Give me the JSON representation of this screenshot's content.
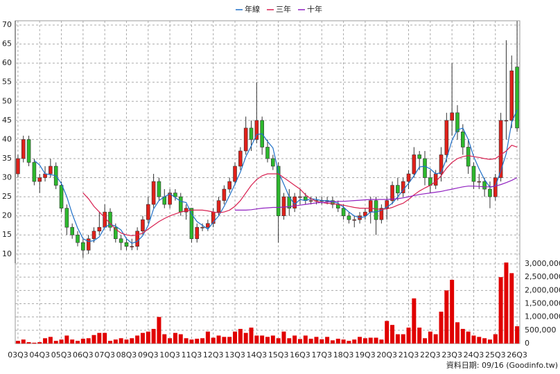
{
  "chart_data": {
    "type": "candlestick",
    "categories": [
      "03Q3",
      null,
      null,
      null,
      "04Q3",
      null,
      null,
      null,
      "05Q3",
      null,
      null,
      null,
      "06Q3",
      null,
      null,
      null,
      "07Q3",
      null,
      null,
      null,
      "08Q3",
      null,
      null,
      null,
      "09Q3",
      null,
      null,
      null,
      "10Q3",
      null,
      null,
      null,
      "11Q3",
      null,
      null,
      null,
      "12Q3",
      null,
      null,
      null,
      "13Q3",
      null,
      null,
      null,
      "14Q3",
      null,
      null,
      null,
      "15Q3",
      null,
      null,
      null,
      "16Q3",
      null,
      null,
      null,
      "17Q3",
      null,
      null,
      null,
      "18Q3",
      null,
      null,
      null,
      "19Q3",
      null,
      null,
      null,
      "20Q3",
      null,
      null,
      null,
      "21Q3",
      null,
      null,
      null,
      "22Q3",
      null,
      null,
      null,
      "23Q3",
      null,
      null,
      null,
      "24Q3",
      null,
      null,
      null,
      "25Q3",
      null,
      null,
      null,
      "26Q3"
    ],
    "open": [
      31,
      35,
      40,
      34,
      29,
      30,
      31,
      33,
      28,
      22,
      17,
      15,
      13,
      11,
      14,
      16,
      17,
      21,
      17,
      14,
      13,
      12,
      12,
      16,
      19,
      23,
      29,
      25,
      23,
      26,
      25,
      21,
      22,
      14,
      17,
      17,
      18,
      21,
      24,
      27,
      29,
      33,
      37,
      43,
      40,
      45,
      38,
      35,
      33,
      20,
      25,
      22,
      25,
      25,
      24,
      24,
      24,
      24,
      24,
      23,
      22,
      20,
      19,
      19,
      20,
      21,
      24,
      19,
      22,
      24,
      28,
      26,
      29,
      31,
      36,
      35,
      30,
      28,
      31,
      36,
      45,
      47,
      42,
      38,
      33,
      29,
      29,
      27,
      25,
      30,
      45,
      45,
      59
    ],
    "high": [
      36,
      41,
      41,
      35,
      31,
      33,
      35,
      34,
      29,
      23,
      18,
      16,
      14,
      15,
      17,
      21,
      23,
      22,
      18,
      15,
      14,
      14,
      17,
      20,
      25,
      31,
      30,
      27,
      27,
      27,
      26,
      23,
      22,
      18,
      18,
      19,
      22,
      25,
      28,
      30,
      34,
      38,
      46,
      45,
      55,
      46,
      40,
      36,
      34,
      26,
      27,
      26,
      27,
      26,
      25,
      25,
      25,
      25,
      25,
      24,
      23,
      21,
      20,
      21,
      22,
      25,
      25,
      23,
      25,
      29,
      30,
      30,
      32,
      38,
      37,
      37,
      32,
      32,
      38,
      47,
      60,
      49,
      44,
      40,
      34,
      31,
      30,
      29,
      31,
      47,
      66,
      62,
      71
    ],
    "low": [
      30,
      34,
      33,
      28,
      26,
      29,
      30,
      27,
      21,
      15,
      14,
      12,
      9,
      10,
      13,
      15,
      17,
      16,
      13,
      11,
      11,
      11,
      11,
      15,
      18,
      22,
      24,
      22,
      22,
      24,
      20,
      19,
      13,
      13,
      16,
      16,
      17,
      20,
      23,
      26,
      28,
      32,
      36,
      37,
      39,
      36,
      34,
      32,
      13,
      19,
      20,
      21,
      23,
      23,
      23,
      23,
      23,
      23,
      22,
      21,
      19,
      18,
      17,
      18,
      19,
      18,
      15,
      18,
      19,
      23,
      24,
      25,
      27,
      30,
      32,
      28,
      26,
      27,
      29,
      34,
      41,
      40,
      36,
      31,
      27,
      27,
      25,
      22,
      24,
      29,
      40,
      43,
      42
    ],
    "close": [
      35,
      40,
      34,
      29,
      30,
      31,
      33,
      28,
      22,
      17,
      15,
      13,
      11,
      14,
      16,
      17,
      21,
      17,
      14,
      13,
      12,
      12,
      16,
      19,
      23,
      29,
      25,
      23,
      26,
      25,
      21,
      22,
      14,
      17,
      17,
      18,
      21,
      24,
      27,
      29,
      33,
      37,
      43,
      40,
      45,
      38,
      35,
      33,
      20,
      25,
      22,
      25,
      25,
      24,
      24,
      24,
      24,
      24,
      23,
      22,
      20,
      19,
      19,
      20,
      21,
      24,
      19,
      22,
      24,
      28,
      26,
      29,
      31,
      36,
      35,
      30,
      28,
      31,
      36,
      45,
      47,
      42,
      38,
      33,
      29,
      29,
      27,
      25,
      30,
      45,
      45,
      58,
      43
    ],
    "up_color": "#e0201a",
    "down_color": "#2db82d",
    "ylim": [
      7.6,
      71.1
    ],
    "yticks": [
      10,
      15,
      20,
      25,
      30,
      35,
      40,
      45,
      50,
      55,
      60,
      65,
      70
    ],
    "grid": true,
    "series": [
      {
        "name": "年線",
        "color": "#1e6fc8",
        "values": [
          null,
          null,
          null,
          34.5,
          33.3,
          31,
          30.8,
          30.5,
          28.5,
          25,
          20.5,
          16.8,
          14,
          13.3,
          13.5,
          14.5,
          17,
          17.8,
          17.3,
          16.3,
          14,
          12.8,
          13.3,
          14.8,
          17.5,
          21.8,
          24,
          25,
          25.8,
          24.8,
          23.8,
          23.5,
          20.5,
          18.5,
          17.5,
          16.5,
          18.3,
          20,
          22.5,
          25.3,
          28.3,
          31.5,
          35.5,
          38.3,
          41.3,
          41.5,
          39.5,
          37.8,
          31.5,
          28.3,
          25,
          23,
          24.3,
          24,
          24.5,
          24.3,
          24,
          24,
          23.8,
          23.3,
          22.3,
          21,
          20,
          19.5,
          19.8,
          21,
          21,
          21.5,
          22.3,
          23.3,
          25,
          26.8,
          28.5,
          30.5,
          32.8,
          33,
          32.3,
          31,
          31.3,
          35,
          39.8,
          42.5,
          43,
          40,
          35.5,
          32.3,
          29.5,
          27.5,
          27.8,
          31.8,
          36.3,
          44.5,
          47.8
        ]
      },
      {
        "name": "三年",
        "color": "#d82050",
        "values": [
          null,
          null,
          null,
          null,
          null,
          null,
          null,
          null,
          null,
          null,
          null,
          null,
          26,
          24.5,
          22.5,
          21,
          19.5,
          18,
          16.5,
          15.5,
          15,
          14.8,
          15,
          15.5,
          16.5,
          17.5,
          18.5,
          19.3,
          20,
          20.5,
          21,
          21.3,
          21.5,
          21.5,
          21.5,
          21.3,
          21,
          20.8,
          21,
          21.5,
          22.5,
          24,
          26,
          28,
          29.5,
          30.5,
          31,
          31,
          31,
          30,
          29,
          28,
          27,
          25.5,
          24.5,
          23.8,
          23.5,
          23.3,
          23.2,
          23,
          22.8,
          22.5,
          22.2,
          22,
          22,
          22,
          21.8,
          21.7,
          21.8,
          22.2,
          22.8,
          23.3,
          24.3,
          25.5,
          26.5,
          27.3,
          28,
          29,
          30.5,
          32.5,
          34,
          35,
          35.5,
          35.8,
          35.5,
          35.3,
          35,
          34.8,
          35,
          36,
          37,
          38.5,
          38
        ]
      },
      {
        "name": "十年",
        "color": "#9020c0",
        "values": [
          null,
          null,
          null,
          null,
          null,
          null,
          null,
          null,
          null,
          null,
          null,
          null,
          null,
          null,
          null,
          null,
          null,
          null,
          null,
          null,
          null,
          null,
          null,
          null,
          null,
          null,
          null,
          null,
          null,
          null,
          null,
          null,
          null,
          null,
          null,
          null,
          null,
          null,
          null,
          null,
          21.5,
          21.5,
          21.5,
          21.6,
          21.8,
          22,
          22.1,
          22.2,
          22.2,
          22.3,
          22.4,
          22.6,
          22.8,
          23,
          23.2,
          23.4,
          23.5,
          23.6,
          23.7,
          23.8,
          23.8,
          23.9,
          24,
          24.1,
          24.2,
          24.3,
          24.3,
          24.3,
          24.3,
          24.4,
          24.5,
          24.7,
          25,
          25.3,
          25.6,
          25.8,
          26,
          26.2,
          26.4,
          26.7,
          27,
          27.3,
          27.6,
          27.8,
          27.8,
          27.7,
          27.6,
          27.6,
          27.8,
          28.2,
          28.7,
          29.3,
          30
        ]
      }
    ],
    "volume": {
      "color": "#e00000",
      "values": [
        100000,
        150000,
        50000,
        30000,
        50000,
        200000,
        250000,
        100000,
        150000,
        300000,
        150000,
        100000,
        180000,
        200000,
        320000,
        400000,
        400000,
        100000,
        150000,
        200000,
        150000,
        200000,
        300000,
        400000,
        450000,
        550000,
        1000000,
        350000,
        200000,
        400000,
        350000,
        200000,
        150000,
        180000,
        200000,
        450000,
        220000,
        300000,
        250000,
        250000,
        450000,
        550000,
        400000,
        600000,
        300000,
        300000,
        250000,
        300000,
        200000,
        450000,
        200000,
        300000,
        170000,
        300000,
        180000,
        250000,
        160000,
        250000,
        120000,
        180000,
        150000,
        100000,
        150000,
        250000,
        200000,
        220000,
        220000,
        150000,
        850000,
        700000,
        350000,
        350000,
        600000,
        1700000,
        600000,
        200000,
        450000,
        350000,
        1200000,
        2000000,
        2400000,
        800000,
        550000,
        450000,
        300000,
        250000,
        200000,
        150000,
        350000,
        2500000,
        3050000,
        2650000,
        650000
      ],
      "ylim": [
        0,
        3130000
      ],
      "yticks": [
        0,
        {
          "value": 500000,
          "label": "500,000"
        },
        {
          "value": 1000000,
          "label": "1,000,000"
        },
        {
          "value": 1500000,
          "label": "1,500,000"
        },
        {
          "value": 2000000,
          "label": "2,000,000"
        },
        {
          "value": 2500000,
          "label": "2,500,000"
        },
        {
          "value": 3000000,
          "label": "3,000,000"
        }
      ]
    },
    "footnote": "資料日期: 09/16 (Goodinfo.tw)"
  }
}
